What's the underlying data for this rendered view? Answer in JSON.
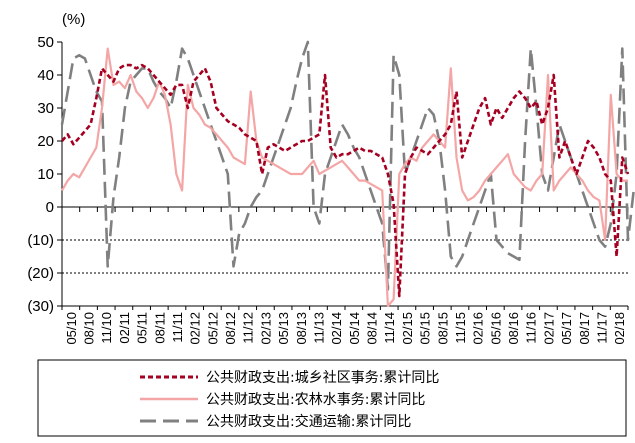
{
  "chart_data": {
    "type": "line",
    "unit_label": "(%)",
    "ylim": [
      -30,
      50
    ],
    "y_ticks": [
      {
        "value": 50,
        "label": "50",
        "color": "#000000"
      },
      {
        "value": 40,
        "label": "40",
        "color": "#000000"
      },
      {
        "value": 30,
        "label": "30",
        "color": "#000000"
      },
      {
        "value": 20,
        "label": "20",
        "color": "#000000"
      },
      {
        "value": 10,
        "label": "10",
        "color": "#000000"
      },
      {
        "value": 0,
        "label": "0",
        "color": "#000000"
      },
      {
        "value": -10,
        "label": "(10)",
        "color": "#c00000"
      },
      {
        "value": -20,
        "label": "(20)",
        "color": "#c00000"
      },
      {
        "value": -30,
        "label": "(30)",
        "color": "#c00000"
      }
    ],
    "x_tick_labels": [
      "05/10",
      "08/10",
      "11/10",
      "02/11",
      "05/11",
      "08/11",
      "11/11",
      "02/12",
      "05/12",
      "08/12",
      "11/12",
      "02/13",
      "05/13",
      "08/13",
      "11/13",
      "02/14",
      "05/14",
      "08/14",
      "11/14",
      "02/15",
      "05/15",
      "08/15",
      "11/15",
      "02/16",
      "05/16",
      "08/16",
      "11/16",
      "02/17",
      "05/17",
      "08/17",
      "11/17",
      "02/18"
    ],
    "x_start": "2010-05",
    "grid": "dotted horizontal at -10 and -20",
    "series": [
      {
        "name": "公共财政支出:城乡社区事务:累计同比",
        "color": "#a50021",
        "style": "short-dash",
        "values": [
          20,
          22,
          19,
          21,
          23,
          25,
          33,
          42,
          40,
          38,
          42,
          43,
          43,
          42,
          43,
          42,
          40,
          38,
          36,
          34,
          37,
          37,
          30,
          38,
          40,
          42,
          38,
          30,
          28,
          26,
          25,
          24,
          22,
          21,
          20,
          10,
          18,
          19,
          18,
          17,
          18,
          19,
          20,
          20,
          21,
          22,
          40,
          18,
          15,
          16,
          16,
          17,
          18,
          17,
          17,
          16,
          15,
          10,
          1,
          -27,
          10,
          15,
          18,
          17,
          16,
          18,
          20,
          22,
          25,
          35,
          15,
          20,
          25,
          30,
          33,
          25,
          30,
          27,
          30,
          33,
          35,
          33,
          30,
          32,
          25,
          30,
          40,
          15,
          20,
          15,
          10,
          15,
          20,
          18,
          15,
          10,
          8,
          -15,
          15,
          10
        ]
      },
      {
        "name": "公共财政支出:农林水事务:累计同比",
        "color": "#f4a6a6",
        "style": "solid",
        "values": [
          5,
          8,
          10,
          9,
          12,
          15,
          18,
          30,
          48,
          37,
          38,
          36,
          40,
          35,
          33,
          30,
          33,
          38,
          34,
          25,
          10,
          5,
          37,
          30,
          28,
          25,
          24,
          22,
          20,
          18,
          15,
          14,
          13,
          35,
          20,
          15,
          14,
          13,
          12,
          11,
          10,
          10,
          10,
          12,
          14,
          10,
          11,
          12,
          13,
          14,
          12,
          10,
          8,
          8,
          7,
          6,
          5,
          -30,
          -28,
          10,
          13,
          15,
          14,
          18,
          20,
          22,
          20,
          18,
          42,
          15,
          5,
          2,
          3,
          5,
          8,
          10,
          12,
          14,
          16,
          10,
          8,
          6,
          5,
          8,
          10,
          40,
          5,
          8,
          10,
          12,
          10,
          8,
          5,
          3,
          2,
          -10,
          34,
          10,
          8,
          8
        ]
      },
      {
        "name": "公共财政支出:交通运输:累计同比",
        "color": "#808080",
        "style": "long-dash",
        "values": [
          25,
          35,
          45,
          46,
          45,
          40,
          35,
          32,
          -18,
          3,
          15,
          30,
          38,
          40,
          42,
          42,
          38,
          35,
          33,
          30,
          38,
          48,
          45,
          40,
          35,
          30,
          25,
          20,
          15,
          10,
          -18,
          -8,
          -5,
          0,
          3,
          5,
          10,
          15,
          20,
          25,
          30,
          38,
          45,
          50,
          0,
          -5,
          10,
          15,
          20,
          25,
          22,
          18,
          15,
          10,
          5,
          0,
          -5,
          -25,
          46,
          40,
          10,
          15,
          20,
          25,
          30,
          28,
          20,
          5,
          -15,
          -18,
          -15,
          -10,
          -5,
          0,
          5,
          10,
          -10,
          -12,
          -14,
          -15,
          -16,
          20,
          48,
          30,
          10,
          5,
          15,
          25,
          20,
          15,
          10,
          5,
          0,
          -5,
          -10,
          -12,
          -5,
          10,
          48,
          -10,
          5
        ]
      }
    ]
  }
}
